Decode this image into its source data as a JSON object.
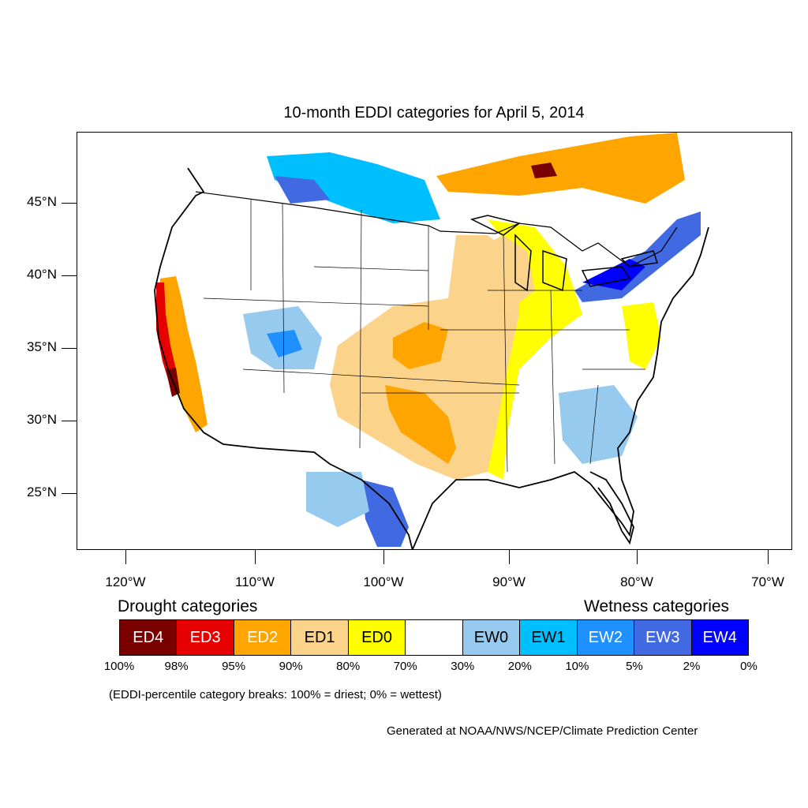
{
  "title": "10-month EDDI categories for April 5, 2014",
  "lat_labels": [
    "45°N",
    "40°N",
    "35°N",
    "30°N",
    "25°N"
  ],
  "lon_labels": [
    "120°W",
    "110°W",
    "100°W",
    "90°W",
    "80°W",
    "70°W"
  ],
  "drought_title": "Drought categories",
  "wetness_title": "Wetness categories",
  "categories": [
    {
      "label": "ED4",
      "color": "#7a0000",
      "text_color": "#ffffff"
    },
    {
      "label": "ED3",
      "color": "#e60000",
      "text_color": "#ffffff"
    },
    {
      "label": "ED2",
      "color": "#ffa500",
      "text_color": "#ffffff"
    },
    {
      "label": "ED1",
      "color": "#fcd38a",
      "text_color": "#000000"
    },
    {
      "label": "ED0",
      "color": "#ffff00",
      "text_color": "#000000"
    },
    {
      "label": "",
      "color": "#ffffff",
      "text_color": "#000000"
    },
    {
      "label": "EW0",
      "color": "#96cbef",
      "text_color": "#000000"
    },
    {
      "label": "EW1",
      "color": "#00bfff",
      "text_color": "#000000"
    },
    {
      "label": "EW2",
      "color": "#1e90ff",
      "text_color": "#ffffff"
    },
    {
      "label": "EW3",
      "color": "#4169e1",
      "text_color": "#ffffff"
    },
    {
      "label": "EW4",
      "color": "#0000ff",
      "text_color": "#ffffff"
    }
  ],
  "breaks": [
    "100%",
    "98%",
    "95%",
    "90%",
    "80%",
    "70%",
    "30%",
    "20%",
    "10%",
    "5%",
    "2%",
    "0%"
  ],
  "note": "(EDDI-percentile category breaks: 100% = driest; 0% = wettest)",
  "credit": "Generated at NOAA/NWS/NCEP/Climate Prediction Center"
}
